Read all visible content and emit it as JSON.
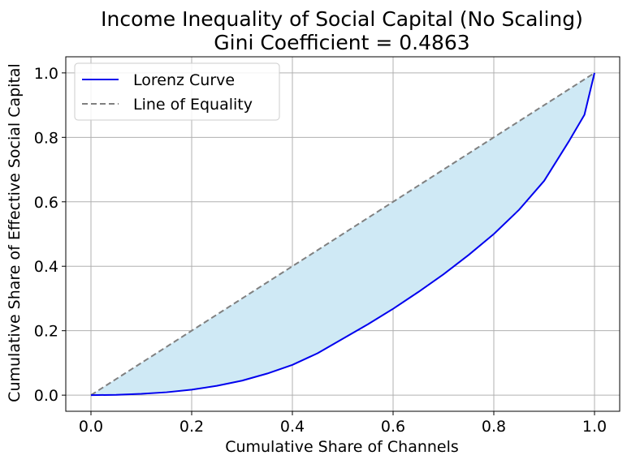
{
  "chart_data": {
    "type": "line",
    "title_line1": "Income Inequality of Social Capital (No Scaling)",
    "title_line2": "Gini Coefficient = 0.4863",
    "xlabel": "Cumulative Share of Channels",
    "ylabel": "Cumulative Share of Effective Social Capital",
    "xlim": [
      -0.05,
      1.05
    ],
    "ylim": [
      -0.05,
      1.05
    ],
    "xticks": [
      0.0,
      0.2,
      0.4,
      0.6,
      0.8,
      1.0
    ],
    "yticks": [
      0.0,
      0.2,
      0.4,
      0.6,
      0.8,
      1.0
    ],
    "xtick_labels": [
      "0.0",
      "0.2",
      "0.4",
      "0.6",
      "0.8",
      "1.0"
    ],
    "ytick_labels": [
      "0.0",
      "0.2",
      "0.4",
      "0.6",
      "0.8",
      "1.0"
    ],
    "grid": true,
    "legend_position": "top-left",
    "series": [
      {
        "name": "Lorenz Curve",
        "color": "#0000ee",
        "style": "solid",
        "x": [
          0.0,
          0.05,
          0.1,
          0.15,
          0.2,
          0.25,
          0.3,
          0.35,
          0.4,
          0.45,
          0.5,
          0.55,
          0.6,
          0.65,
          0.7,
          0.75,
          0.8,
          0.85,
          0.9,
          0.95,
          0.98,
          1.0
        ],
        "y": [
          0.0,
          0.001,
          0.004,
          0.009,
          0.017,
          0.029,
          0.045,
          0.067,
          0.094,
          0.13,
          0.175,
          0.22,
          0.268,
          0.32,
          0.375,
          0.435,
          0.5,
          0.575,
          0.665,
          0.79,
          0.87,
          1.0
        ]
      },
      {
        "name": "Line of Equality",
        "color": "#808080",
        "style": "dashed",
        "x": [
          0.0,
          1.0
        ],
        "y": [
          0.0,
          1.0
        ]
      }
    ],
    "fill_between": {
      "color": "#cfe9f5"
    }
  }
}
